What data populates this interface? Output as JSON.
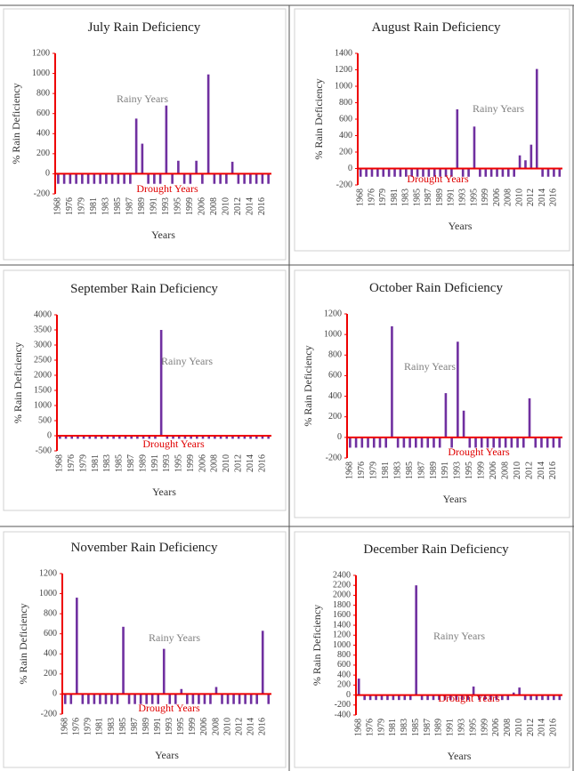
{
  "chart_data": [
    {
      "type": "bar",
      "title": "July Rain Deficiency",
      "ylabel": "% Rain Deficiency",
      "xlabel": "Years",
      "annotations": [
        "Rainy Years",
        "Drought Years"
      ],
      "color": "#7030a0",
      "categories": [
        "1968",
        null,
        "1976",
        null,
        "1979",
        null,
        "1981",
        null,
        "1983",
        null,
        "1985",
        null,
        "1987",
        null,
        "1989",
        null,
        "1991",
        null,
        "1993",
        null,
        "1995",
        null,
        "1999",
        null,
        "2006",
        null,
        "2008",
        null,
        "2010",
        null,
        "2012",
        null,
        "2014",
        null,
        "2016",
        null
      ],
      "values": [
        -100,
        -100,
        -100,
        -100,
        -100,
        -100,
        -100,
        -100,
        -100,
        -100,
        -100,
        -100,
        -100,
        550,
        300,
        -100,
        -100,
        -100,
        680,
        -100,
        130,
        -100,
        -100,
        130,
        -100,
        990,
        -100,
        -100,
        -100,
        120,
        -100,
        -100,
        -100,
        -100,
        -100,
        -100
      ],
      "ylim": [
        -200,
        1200
      ],
      "yticks": [
        -200,
        0,
        200,
        400,
        600,
        800,
        1000,
        1200
      ]
    },
    {
      "type": "bar",
      "title": "August Rain Deficiency",
      "ylabel": "% Rain Deficiency",
      "xlabel": "Years",
      "annotations": [
        "Rainy Years",
        "Drought Years"
      ],
      "color": "#7030a0",
      "categories": [
        "1968",
        null,
        "1976",
        null,
        "1979",
        null,
        "1981",
        null,
        "1983",
        null,
        "1985",
        null,
        "1987",
        null,
        "1989",
        null,
        "1991",
        null,
        "1993",
        null,
        "1995",
        null,
        "1999",
        null,
        "2006",
        null,
        "2008",
        null,
        "2010",
        null,
        "2012",
        null,
        "2014",
        null,
        "2016",
        null
      ],
      "values": [
        -100,
        -100,
        -100,
        -100,
        -100,
        -100,
        -100,
        -100,
        -100,
        -100,
        -100,
        -100,
        -100,
        -100,
        -100,
        -100,
        -100,
        720,
        -100,
        -100,
        510,
        -100,
        -100,
        -100,
        -100,
        -100,
        -100,
        -100,
        160,
        100,
        290,
        1210,
        -100,
        -100,
        -100,
        -100
      ],
      "ylim": [
        -200,
        1400
      ],
      "yticks": [
        -200,
        0,
        200,
        400,
        600,
        800,
        1000,
        1200,
        1400
      ]
    },
    {
      "type": "bar",
      "title": "September Rain Deficiency",
      "ylabel": "% Rain Deficiency",
      "xlabel": "Years",
      "annotations": [
        "Rainy Years",
        "Drought Years"
      ],
      "color": "#7030a0",
      "categories": [
        "1968",
        null,
        "1976",
        null,
        "1979",
        null,
        "1981",
        null,
        "1983",
        null,
        "1985",
        null,
        "1987",
        null,
        "1989",
        null,
        "1991",
        null,
        "1993",
        null,
        "1995",
        null,
        "1999",
        null,
        "2006",
        null,
        "2008",
        null,
        "2010",
        null,
        "2012",
        null,
        "2014",
        null,
        "2016",
        null
      ],
      "values": [
        -100,
        -100,
        -100,
        -100,
        -100,
        -100,
        -100,
        -100,
        -100,
        -100,
        -100,
        -100,
        -100,
        -100,
        -100,
        -100,
        -100,
        3500,
        -100,
        -100,
        -100,
        -100,
        -100,
        -100,
        -100,
        -100,
        -100,
        -100,
        -100,
        -100,
        -100,
        -100,
        -100,
        -100,
        -100,
        -100
      ],
      "ylim": [
        -500,
        4000
      ],
      "yticks": [
        -500,
        0,
        500,
        1000,
        1500,
        2000,
        2500,
        3000,
        3500,
        4000
      ]
    },
    {
      "type": "bar",
      "title": "October Rain Deficiency",
      "ylabel": "% Rain Deficiency",
      "xlabel": "Years",
      "annotations": [
        "Rainy Years",
        "Drought Years"
      ],
      "color": "#7030a0",
      "categories": [
        "1968",
        null,
        "1976",
        null,
        "1979",
        null,
        "1981",
        null,
        "1983",
        null,
        "1985",
        null,
        "1987",
        null,
        "1989",
        null,
        "1991",
        null,
        "1993",
        null,
        "1995",
        null,
        "1999",
        null,
        "2006",
        null,
        "2008",
        null,
        "2010",
        null,
        "2012",
        null,
        "2014",
        null,
        "2016",
        null
      ],
      "values": [
        -100,
        -100,
        -100,
        -100,
        -100,
        -100,
        -100,
        1080,
        -100,
        -100,
        -100,
        -100,
        -100,
        -100,
        -100,
        -100,
        430,
        -100,
        930,
        260,
        -100,
        -100,
        -100,
        -100,
        -100,
        -100,
        -100,
        -100,
        -100,
        -100,
        380,
        -100,
        -100,
        -100,
        -100,
        -100
      ],
      "ylim": [
        -200,
        1200
      ],
      "yticks": [
        -200,
        0,
        200,
        400,
        600,
        800,
        1000,
        1200
      ]
    },
    {
      "type": "bar",
      "title": "November Rain Deficiency",
      "ylabel": "% Rain Deficiency",
      "xlabel": "Years",
      "annotations": [
        "Rainy Years",
        "Drought Years"
      ],
      "color": "#7030a0",
      "categories": [
        "1968",
        null,
        "1976",
        null,
        "1979",
        null,
        "1981",
        null,
        "1983",
        null,
        "1985",
        null,
        "1987",
        null,
        "1989",
        null,
        "1991",
        null,
        "1993",
        null,
        "1995",
        null,
        "1999",
        null,
        "2006",
        null,
        "2008",
        null,
        "2010",
        null,
        "2012",
        null,
        "2014",
        null,
        "2016",
        null
      ],
      "values": [
        -100,
        -100,
        960,
        -100,
        -100,
        -100,
        -100,
        -100,
        -100,
        -100,
        670,
        -100,
        -100,
        -100,
        -100,
        -100,
        -100,
        450,
        -100,
        -100,
        50,
        -100,
        -100,
        -100,
        -100,
        -100,
        70,
        -100,
        -100,
        -100,
        -100,
        -100,
        -100,
        -100,
        630,
        -100
      ],
      "ylim": [
        -200,
        1200
      ],
      "yticks": [
        -200,
        0,
        200,
        400,
        600,
        800,
        1000,
        1200
      ]
    },
    {
      "type": "bar",
      "title": "December Rain Deficiency",
      "ylabel": "% Rain Deficiency",
      "xlabel": "Years",
      "annotations": [
        "Rainy Years",
        "Drought Years"
      ],
      "color": "#7030a0",
      "categories": [
        "1968",
        null,
        "1976",
        null,
        "1979",
        null,
        "1981",
        null,
        "1983",
        null,
        "1985",
        null,
        "1987",
        null,
        "1989",
        null,
        "1991",
        null,
        "1993",
        null,
        "1995",
        null,
        "1999",
        null,
        "2006",
        null,
        "2008",
        null,
        "2010",
        null,
        "2012",
        null,
        "2014",
        null,
        "2016",
        null
      ],
      "values": [
        330,
        -100,
        -100,
        -100,
        -100,
        -100,
        -100,
        -100,
        -100,
        -100,
        2200,
        -100,
        -100,
        -100,
        -100,
        -100,
        -100,
        -100,
        -100,
        -100,
        170,
        -100,
        -100,
        -100,
        -100,
        -100,
        -100,
        50,
        150,
        -100,
        -100,
        -100,
        -100,
        -100,
        -100,
        -100
      ],
      "ylim": [
        -400,
        2400
      ],
      "yticks": [
        -400,
        -200,
        0,
        200,
        400,
        600,
        800,
        1000,
        1200,
        1400,
        1600,
        1800,
        2000,
        2200,
        2400
      ]
    }
  ]
}
